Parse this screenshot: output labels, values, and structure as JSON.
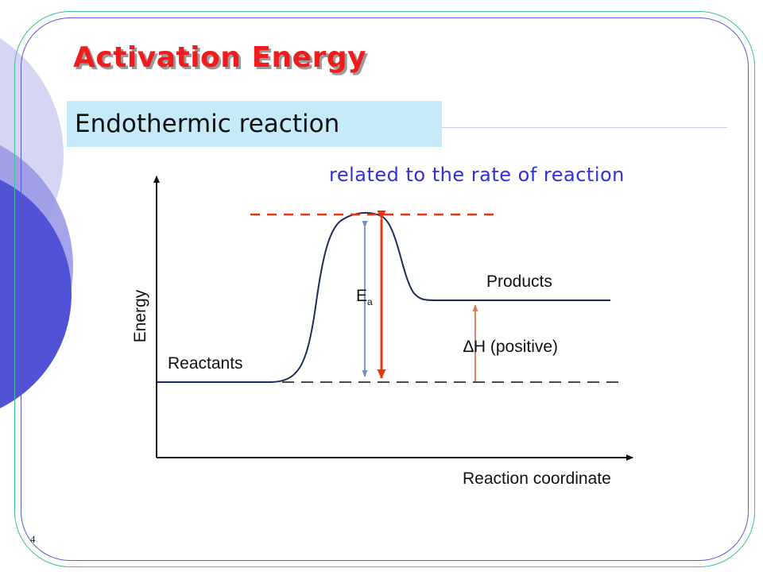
{
  "slide": {
    "title": "Activation Energy",
    "subtitle": "Endothermic reaction",
    "note": "related to the rate of reaction",
    "page_number": "4"
  },
  "diagram": {
    "y_axis_label": "Energy",
    "x_axis_label": "Reaction coordinate",
    "reactants_label": "Reactants",
    "products_label": "Products",
    "ea_label": "E",
    "ea_subscript": "a",
    "delta_h_label": "∆H (positive)"
  },
  "colors": {
    "title": "#ee1c1c",
    "note": "#3030d8",
    "curve": "#1e2a5c",
    "ea_arrow": "#6f8fbf",
    "highlight_arrow": "#ee3311",
    "delta_h_arrow": "#e07a50",
    "subtitle_bg": "#c6eaf8"
  }
}
